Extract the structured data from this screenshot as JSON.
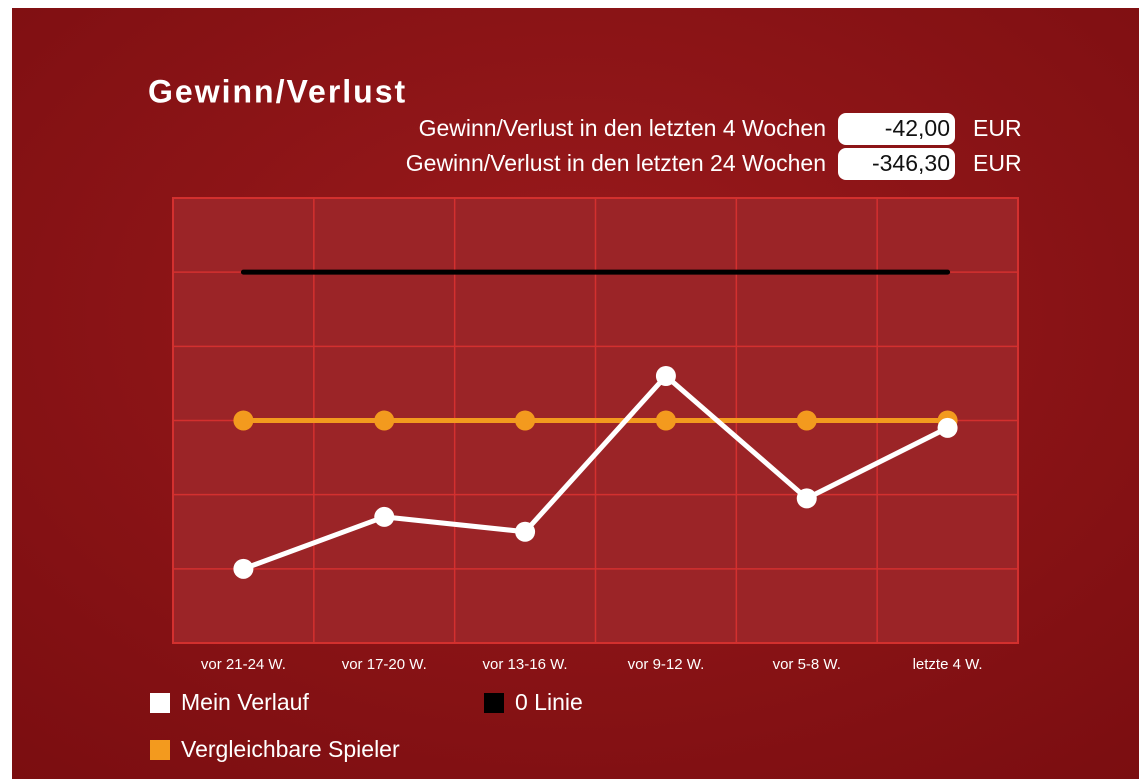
{
  "summary": {
    "rows": [
      {
        "label": "Gewinn/Verlust in den letzten 4 Wochen",
        "value": "-42,00",
        "unit": "EUR"
      },
      {
        "label": "Gewinn/Verlust in den letzten 24 Wochen",
        "value": "-346,30",
        "unit": "EUR"
      }
    ]
  },
  "chart_data": {
    "type": "line",
    "title": "Gewinn/Verlust",
    "categories": [
      "vor 21-24 W.",
      "vor 17-20 W.",
      "vor 13-16 W.",
      "vor 9-12 W.",
      "vor 5-8 W.",
      "letzte 4 W."
    ],
    "series": [
      {
        "name": "Mein Verlauf",
        "color": "#ffffff",
        "values": [
          -4.0,
          -3.3,
          -3.5,
          -1.4,
          -3.05,
          -2.1
        ]
      },
      {
        "name": "0 Linie",
        "color": "#000000",
        "values": [
          0,
          0,
          0,
          0,
          0,
          0
        ]
      },
      {
        "name": "Vergleichbare Spieler",
        "color": "#f39a1e",
        "values": [
          -2.0,
          -2.0,
          -2.0,
          -2.0,
          -2.0,
          -2.0
        ]
      }
    ],
    "ylim": [
      -5,
      1
    ],
    "yticks": [
      -5,
      -4,
      -3,
      -2,
      -1,
      0,
      1
    ],
    "grid": true
  }
}
